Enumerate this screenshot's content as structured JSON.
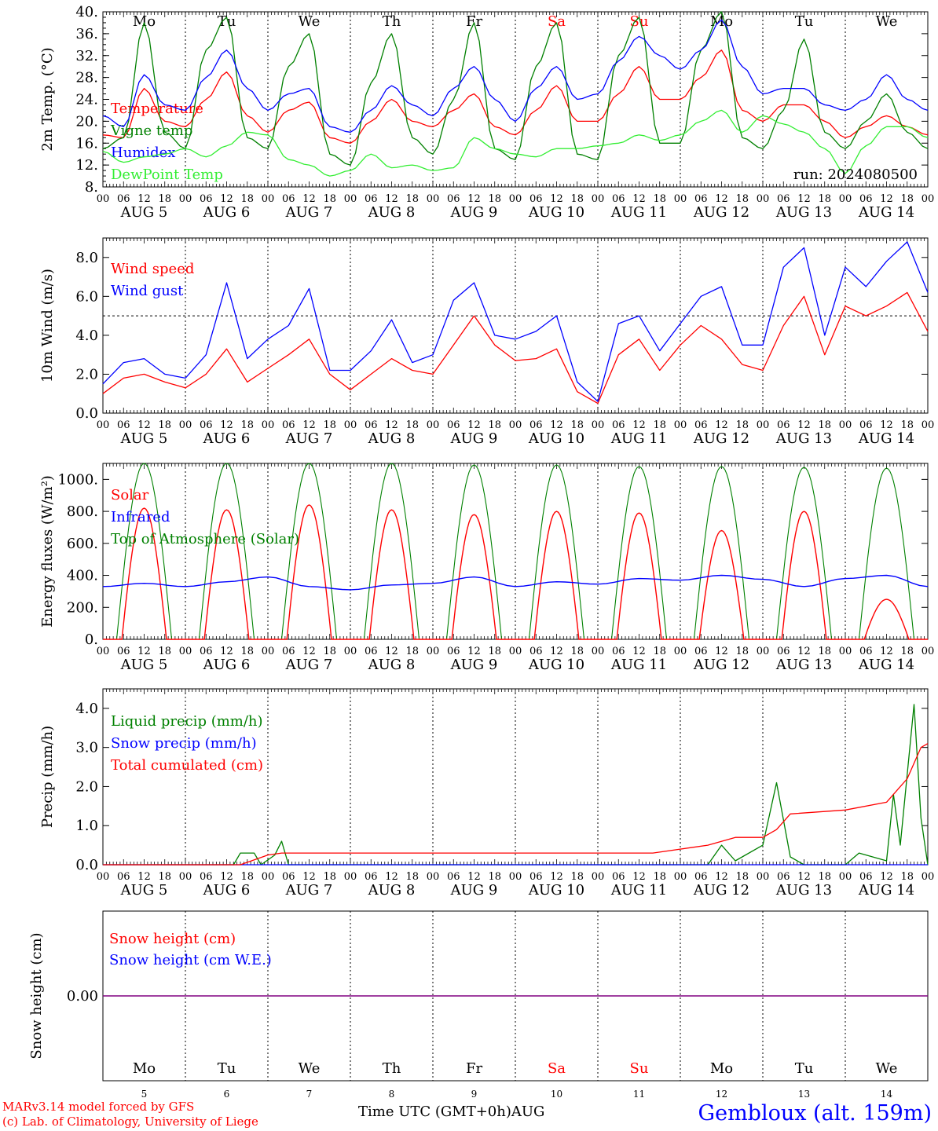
{
  "days": {
    "weekday_labels": [
      "Mo",
      "Tu",
      "We",
      "Th",
      "Fr",
      "Sa",
      "Su",
      "Mo",
      "Tu",
      "We"
    ],
    "weekend_flags": [
      false,
      false,
      false,
      false,
      false,
      true,
      true,
      false,
      false,
      false
    ],
    "date_labels": [
      "AUG  5",
      "AUG  6",
      "AUG  7",
      "AUG  8",
      "AUG  9",
      "AUG 10",
      "AUG 11",
      "AUG 12",
      "AUG 13",
      "AUG 14"
    ],
    "hour_ticks": [
      "00",
      "06",
      "12",
      "18"
    ],
    "bottom_day_numbers": [
      "5",
      "6",
      "7",
      "8",
      "9",
      "10",
      "11",
      "12",
      "13",
      "14"
    ],
    "final_hour_tick": "00"
  },
  "colors": {
    "red": "#ff0000",
    "green": "#008000",
    "blue": "#0000ff",
    "lightgreen": "#33ee33",
    "purple": "#800080"
  },
  "footer": {
    "credit_line1": "MARv3.14 model forced by GFS",
    "credit_line2": "(c) Lab. of Climatology, University of Liege",
    "xaxis_title": "Time UTC (GMT+0h)",
    "month": "AUG",
    "station": "Gembloux (alt. 159m)"
  },
  "chart_data": [
    {
      "type": "line",
      "ylabel": "2m Temp. (°C)",
      "ylim": [
        8,
        40
      ],
      "yticks": [
        "8.",
        "12.",
        "16.",
        "20.",
        "24.",
        "28.",
        "32.",
        "36.",
        "40."
      ],
      "annotation": "run: 2024080500",
      "x_unit": "hours since AUG 5 00 UTC",
      "series": [
        {
          "name": "Temperature",
          "color": "#ff0000",
          "x": [
            0,
            6,
            12,
            18,
            24,
            30,
            36,
            42,
            48,
            54,
            60,
            66,
            72,
            78,
            84,
            90,
            96,
            102,
            108,
            114,
            120,
            126,
            132,
            138,
            144,
            150,
            156,
            162,
            168,
            174,
            180,
            186,
            192,
            198,
            204,
            210,
            216,
            222,
            228,
            234,
            240
          ],
          "y": [
            17.5,
            17,
            26,
            20,
            19,
            24,
            29,
            21,
            18,
            22,
            23.5,
            17,
            16,
            20,
            24,
            20,
            19,
            22,
            25,
            19,
            17.5,
            22,
            26.5,
            20,
            20,
            25,
            30,
            24,
            24,
            28,
            33,
            22,
            20,
            23,
            23,
            20,
            17,
            19,
            21,
            19,
            17.5
          ]
        },
        {
          "name": "Vigne temp",
          "color": "#008000",
          "x": [
            0,
            6,
            12,
            18,
            24,
            30,
            36,
            42,
            48,
            54,
            60,
            66,
            72,
            78,
            84,
            90,
            96,
            102,
            108,
            114,
            120,
            126,
            132,
            138,
            144,
            150,
            156,
            162,
            168,
            174,
            180,
            186,
            192,
            198,
            204,
            210,
            216,
            222,
            228,
            234,
            240
          ],
          "y": [
            15,
            17,
            38,
            18,
            15,
            33,
            39,
            17,
            15,
            30,
            36,
            14,
            12,
            27,
            36,
            17,
            14,
            24,
            38,
            15,
            13,
            30,
            38,
            14,
            13,
            32,
            39,
            16,
            16,
            33,
            40,
            17,
            15,
            22,
            35,
            18,
            15,
            20,
            25,
            18,
            15
          ]
        },
        {
          "name": "Humidex",
          "color": "#0000ff",
          "x": [
            0,
            6,
            12,
            18,
            24,
            30,
            36,
            42,
            48,
            54,
            60,
            66,
            72,
            78,
            84,
            90,
            96,
            102,
            108,
            114,
            120,
            126,
            132,
            138,
            144,
            150,
            156,
            162,
            168,
            174,
            180,
            186,
            192,
            198,
            204,
            210,
            216,
            222,
            228,
            234,
            240
          ],
          "y": [
            21,
            19,
            28.5,
            23,
            22,
            28,
            33,
            26,
            22,
            25,
            26,
            19,
            18,
            22,
            26.5,
            23,
            21,
            26,
            30,
            24,
            20,
            26,
            30,
            24,
            25,
            31,
            35.5,
            32,
            29.5,
            33,
            38.5,
            30,
            25,
            26,
            26,
            23,
            22,
            24,
            28.5,
            24,
            22
          ]
        },
        {
          "name": "DewPoint Temp",
          "color": "#33ee33",
          "x": [
            0,
            6,
            12,
            18,
            24,
            30,
            36,
            42,
            48,
            54,
            60,
            66,
            72,
            78,
            84,
            90,
            96,
            102,
            108,
            114,
            120,
            126,
            132,
            138,
            144,
            150,
            156,
            162,
            168,
            174,
            180,
            186,
            192,
            198,
            204,
            210,
            216,
            222,
            228,
            234,
            240
          ],
          "y": [
            14.5,
            12.5,
            13.5,
            14,
            15,
            13.5,
            15.5,
            18,
            17.5,
            13,
            12,
            10,
            11,
            14,
            11.5,
            12,
            11,
            11.5,
            17,
            15,
            14,
            13.5,
            15,
            15,
            15.5,
            16,
            17.5,
            16.5,
            17.5,
            20,
            22,
            18,
            21,
            19.5,
            18,
            15,
            10.5,
            15.5,
            19,
            19,
            17
          ]
        }
      ]
    },
    {
      "type": "line",
      "ylabel": "10m Wind (m/s)",
      "ylim": [
        0,
        9
      ],
      "yticks": [
        "0.0",
        "2.0",
        "4.0",
        "6.0",
        "8.0"
      ],
      "reference_line": 5,
      "x_unit": "hours since AUG 5 00 UTC",
      "series": [
        {
          "name": "Wind speed",
          "color": "#ff0000",
          "x": [
            0,
            6,
            12,
            18,
            24,
            30,
            36,
            42,
            48,
            54,
            60,
            66,
            72,
            78,
            84,
            90,
            96,
            102,
            108,
            114,
            120,
            126,
            132,
            138,
            144,
            150,
            156,
            162,
            168,
            174,
            180,
            186,
            192,
            198,
            204,
            210,
            216,
            222,
            228,
            234,
            240
          ],
          "y": [
            1,
            1.8,
            2,
            1.6,
            1.3,
            2,
            3.3,
            1.6,
            2.3,
            3,
            3.8,
            2,
            1.2,
            2,
            2.8,
            2.2,
            2,
            3.5,
            5,
            3.5,
            2.7,
            2.8,
            3.3,
            1.1,
            0.5,
            3,
            3.8,
            2.2,
            3.5,
            4.5,
            3.8,
            2.5,
            2.2,
            4.5,
            6,
            3,
            5.5,
            5,
            5.5,
            6.2,
            4.2
          ]
        },
        {
          "name": "Wind gust",
          "color": "#0000ff",
          "x": [
            0,
            6,
            12,
            18,
            24,
            30,
            36,
            42,
            48,
            54,
            60,
            66,
            72,
            78,
            84,
            90,
            96,
            102,
            108,
            114,
            120,
            126,
            132,
            138,
            144,
            150,
            156,
            162,
            168,
            174,
            180,
            186,
            192,
            198,
            204,
            210,
            216,
            222,
            228,
            234,
            240
          ],
          "y": [
            1.5,
            2.6,
            2.8,
            2,
            1.8,
            3,
            6.7,
            2.8,
            3.8,
            4.5,
            6.4,
            2.2,
            2.2,
            3.2,
            4.8,
            2.6,
            3,
            5.8,
            6.7,
            4,
            3.8,
            4.2,
            5,
            1.6,
            0.6,
            4.6,
            5,
            3.2,
            4.6,
            6,
            6.5,
            3.5,
            3.5,
            7.5,
            8.5,
            4,
            7.5,
            6.5,
            7.8,
            8.8,
            6.2
          ]
        }
      ]
    },
    {
      "type": "line",
      "ylabel": "Energy fluxes (W/m²)",
      "ylim": [
        0,
        1100
      ],
      "yticks": [
        "0.",
        "200.",
        "400.",
        "600.",
        "800.",
        "1000."
      ],
      "x_unit": "hours since AUG 5 00 UTC",
      "series": [
        {
          "name": "Solar",
          "color": "#ff0000",
          "day_peaks": [
            820,
            810,
            840,
            810,
            780,
            800,
            790,
            680,
            800,
            250
          ]
        },
        {
          "name": "Infrared",
          "color": "#0000ff",
          "x": [
            0,
            12,
            24,
            36,
            48,
            60,
            72,
            84,
            96,
            108,
            120,
            132,
            144,
            156,
            168,
            180,
            192,
            204,
            216,
            228,
            240
          ],
          "y": [
            330,
            350,
            330,
            360,
            390,
            330,
            310,
            340,
            350,
            390,
            330,
            360,
            345,
            380,
            370,
            400,
            375,
            330,
            380,
            400,
            330
          ]
        },
        {
          "name": "Top of Atmosphere (Solar)",
          "color": "#008000",
          "day_peaks": [
            1100,
            1100,
            1100,
            1100,
            1090,
            1090,
            1080,
            1080,
            1075,
            1070
          ]
        }
      ]
    },
    {
      "type": "line",
      "ylabel": "Precip (mm/h)",
      "ylim": [
        0,
        4.5
      ],
      "yticks": [
        "0.0",
        "1.0",
        "2.0",
        "3.0",
        "4.0"
      ],
      "x_unit": "hours since AUG 5 00 UTC",
      "series": [
        {
          "name": "Liquid precip (mm/h)",
          "color": "#008000",
          "x": [
            0,
            38,
            40,
            44,
            46,
            50,
            52,
            54,
            160,
            176,
            180,
            184,
            192,
            196,
            200,
            204,
            216,
            220,
            228,
            230,
            232,
            236,
            238,
            240
          ],
          "y": [
            0,
            0,
            0.3,
            0.3,
            0,
            0.25,
            0.6,
            0,
            0,
            0,
            0.5,
            0.1,
            0.5,
            2.1,
            0.2,
            0,
            0,
            0.3,
            0.1,
            1.8,
            0.5,
            4.1,
            1.2,
            0
          ]
        },
        {
          "name": "Snow precip (mm/h)",
          "color": "#0000ff",
          "x": [
            0,
            240
          ],
          "y": [
            0,
            0
          ]
        },
        {
          "name": "Total cumulated (cm)",
          "color": "#ff0000",
          "x": [
            0,
            40,
            48,
            52,
            160,
            176,
            184,
            192,
            196,
            200,
            216,
            228,
            234,
            238,
            240
          ],
          "y": [
            0,
            0,
            0.25,
            0.3,
            0.3,
            0.5,
            0.7,
            0.7,
            0.9,
            1.3,
            1.4,
            1.6,
            2.2,
            3.0,
            3.1
          ]
        }
      ]
    },
    {
      "type": "line",
      "ylabel": "Snow height (cm)",
      "yticks": [
        "0.00"
      ],
      "x_unit": "hours since AUG 5 00 UTC",
      "series": [
        {
          "name": "Snow height (cm)",
          "color": "#ff0000",
          "x": [
            0,
            240
          ],
          "y": [
            0,
            0
          ]
        },
        {
          "name": "Snow height (cm W.E.)",
          "color": "#0000ff",
          "x": [
            0,
            240
          ],
          "y": [
            0,
            0
          ]
        }
      ]
    }
  ]
}
